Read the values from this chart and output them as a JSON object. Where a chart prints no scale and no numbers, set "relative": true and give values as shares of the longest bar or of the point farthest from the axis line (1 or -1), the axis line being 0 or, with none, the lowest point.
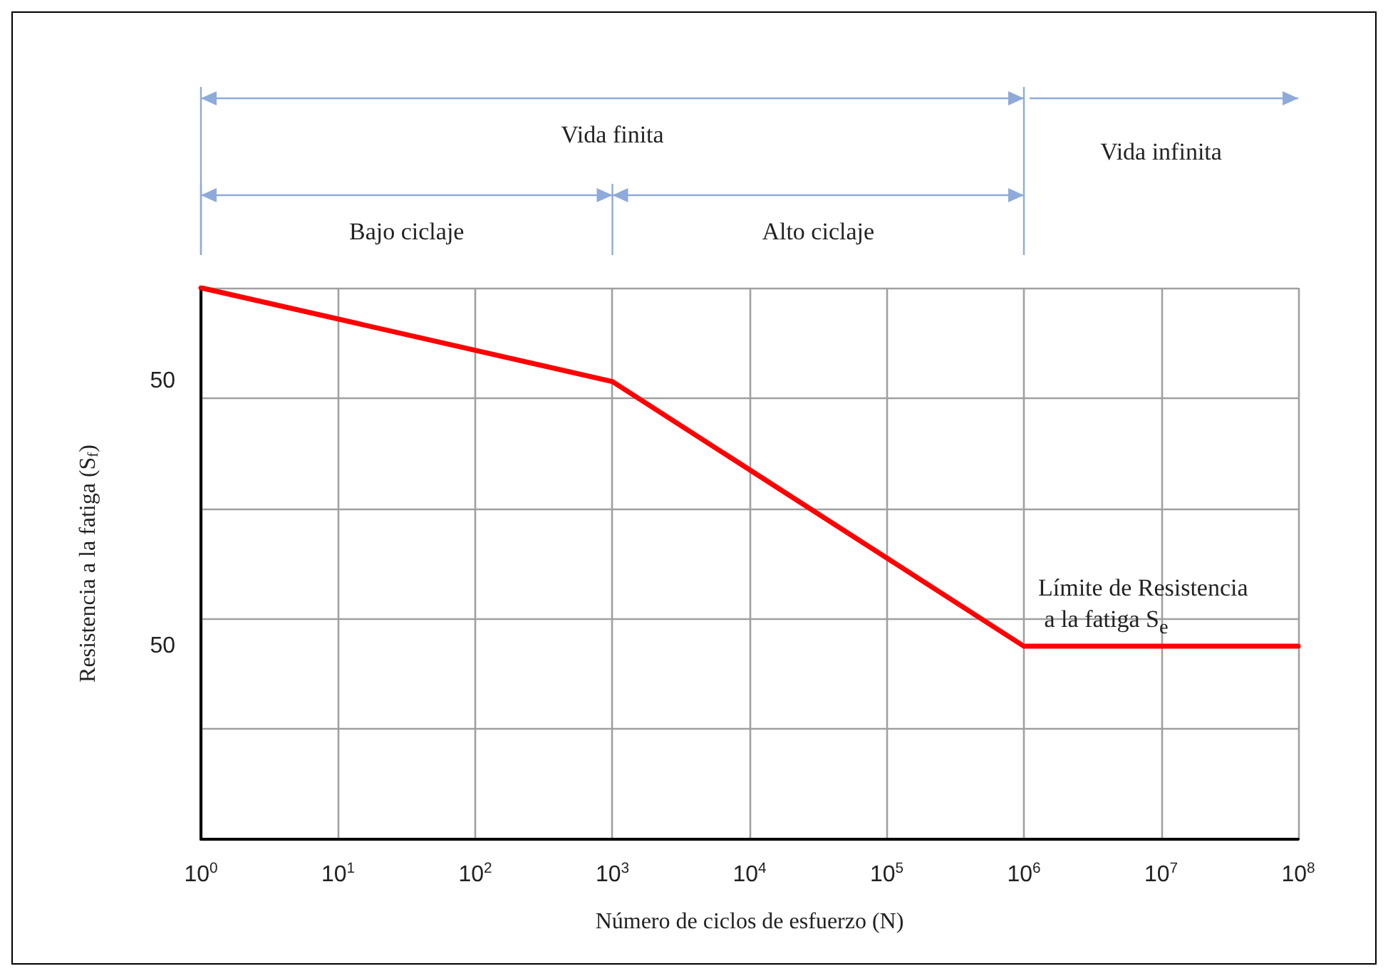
{
  "chart_data": {
    "type": "line",
    "xlabel": "Número de ciclos de esfuerzo (N)",
    "ylabel": "Resistencia a la fatiga (S$_{f}$)",
    "x": [
      1,
      1000,
      1000000,
      100000000
    ],
    "series": [
      {
        "color": "#ff0000",
        "values": [
          1,
          0.83,
          0.35,
          0.35
        ]
      }
    ],
    "relative": true,
    "log": "x",
    "xlim": [
      1,
      100000000
    ],
    "xticks": [
      {
        "value": 1,
        "label": "10$^{0}$"
      },
      {
        "value": 10,
        "label": "10$^{1}$"
      },
      {
        "value": 100,
        "label": "10$^{2}$"
      },
      {
        "value": 1000,
        "label": "10$^{3}$"
      },
      {
        "value": 10000,
        "label": "10$^{4}$"
      },
      {
        "value": 100000,
        "label": "10$^{5}$"
      },
      {
        "value": 1000000,
        "label": "10$^{6}$"
      },
      {
        "value": 10000000,
        "label": "10$^{7}$"
      },
      {
        "value": 100000000,
        "label": "10$^{8}$"
      }
    ],
    "grid": true,
    "marker": "none",
    "line_style": "solid",
    "annotations": [
      "Vida finita",
      "Vida infinita",
      "Bajo ciclaje",
      "Alto ciclaje",
      "50",
      "50",
      "Límite de Resistencia\na la fatiga S$_{e}$"
    ]
  }
}
